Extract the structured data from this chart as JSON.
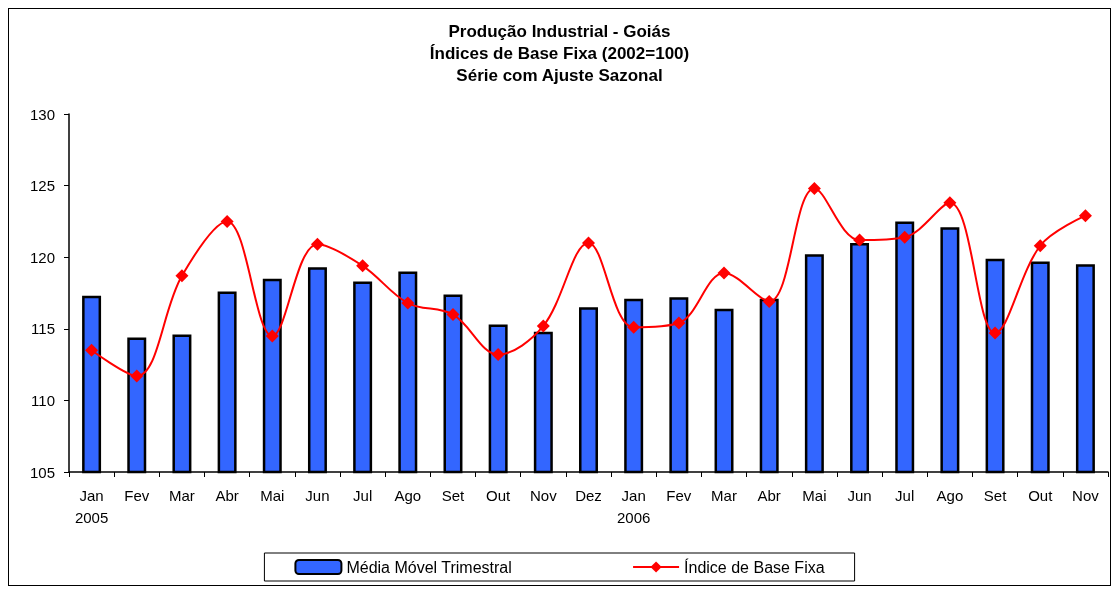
{
  "chart_data": {
    "type": "bar",
    "title": "Produção Industrial - Goiás\nÍndices de Base Fixa (2002=100)\nSérie com Ajuste Sazonal",
    "categories": [
      "Jan\n2005",
      "Fev",
      "Mar",
      "Abr",
      "Mai",
      "Jun",
      "Jul",
      "Ago",
      "Set",
      "Out",
      "Nov",
      "Dez",
      "Jan\n2006",
      "Fev",
      "Mar",
      "Abr",
      "Mai",
      "Jun",
      "Jul",
      "Ago",
      "Set",
      "Out",
      "Nov"
    ],
    "series": [
      {
        "name": "Média Móvel Trimestral",
        "color": "#3366ff",
        "values": [
          117.3,
          114.4,
          114.6,
          117.6,
          118.5,
          119.3,
          118.3,
          119.0,
          117.4,
          115.3,
          114.8,
          116.5,
          117.1,
          117.2,
          116.4,
          117.1,
          120.2,
          121.0,
          122.5,
          122.1,
          119.9,
          119.7,
          119.5
        ]
      },
      {
        "name": "Índice de Base Fixa",
        "type": "line",
        "color": "#ff0000",
        "marker": "diamond",
        "values": [
          113.5,
          111.7,
          118.7,
          122.5,
          114.5,
          120.9,
          119.4,
          116.8,
          116.0,
          113.2,
          115.2,
          121.0,
          115.1,
          115.4,
          118.9,
          116.9,
          124.8,
          121.2,
          121.4,
          123.8,
          114.7,
          120.8,
          122.9
        ]
      }
    ],
    "ylim": [
      105,
      130
    ],
    "yticks": [
      105,
      110,
      115,
      120,
      125,
      130
    ],
    "grid": false,
    "legend": "bottom"
  }
}
